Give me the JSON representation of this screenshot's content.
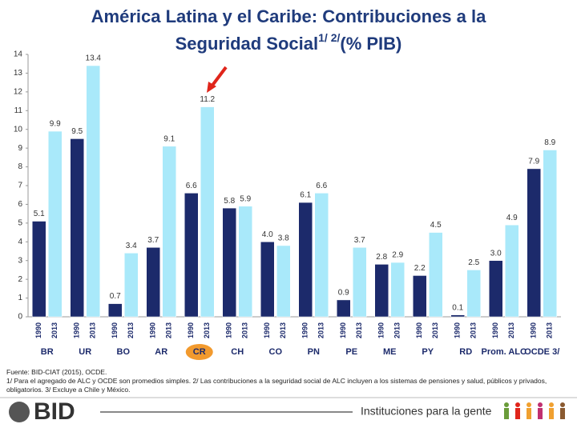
{
  "chart_data": {
    "type": "bar",
    "title": [
      "América Latina y el Caribe: Contribuciones a la",
      "Seguridad Social",
      "1/ 2/",
      "(% PIB)"
    ],
    "categories": [
      "BR",
      "UR",
      "BO",
      "AR",
      "CR",
      "CH",
      "CO",
      "PN",
      "PE",
      "ME",
      "PY",
      "RD",
      "Prom. ALC",
      "OCDE 3/"
    ],
    "series": [
      {
        "name": "1990",
        "color": "#1c2a6b",
        "values": [
          5.1,
          9.5,
          0.7,
          3.7,
          6.6,
          5.8,
          4.0,
          6.1,
          0.9,
          2.8,
          2.2,
          0.1,
          3.0,
          7.9
        ],
        "value_labels": [
          "5.1",
          "9.5",
          "0.7",
          "3.7",
          "6.6",
          "5.8",
          "4.0",
          "6.1",
          "0.9",
          "2.8",
          "2.2",
          "0.1",
          "3.0",
          "7.9"
        ]
      },
      {
        "name": "2013",
        "color": "#a9e9fa",
        "values": [
          9.9,
          13.4,
          3.4,
          9.1,
          11.2,
          5.9,
          3.8,
          6.6,
          3.7,
          2.9,
          4.5,
          2.5,
          4.9,
          8.9
        ],
        "value_labels": [
          "9.9",
          "13.4",
          "3.4",
          "9.1",
          "11.2",
          "5.9",
          "3.8",
          "6.6",
          "3.7",
          "2.9",
          "4.5",
          "2.5",
          "4.9",
          "8.9"
        ]
      }
    ],
    "ylim": [
      0,
      14
    ],
    "yticks": [
      0,
      1,
      2,
      3,
      4,
      5,
      6,
      7,
      8,
      9,
      10,
      11,
      12,
      13,
      14
    ],
    "grid": false,
    "highlight": "CR",
    "notes": [
      "Fuente: BID-CIAT (2015), OCDE.",
      "1/ Para el agregado de ALC y OCDE son promedios simples. 2/ Las contribuciones a la seguridad social de ALC incluyen a los sistemas de pensiones y salud, públicos y privados, obligatorios. 3/ Excluye a Chile y México."
    ]
  },
  "footer": {
    "logo": "BID",
    "tagline": "Instituciones para la gente"
  }
}
